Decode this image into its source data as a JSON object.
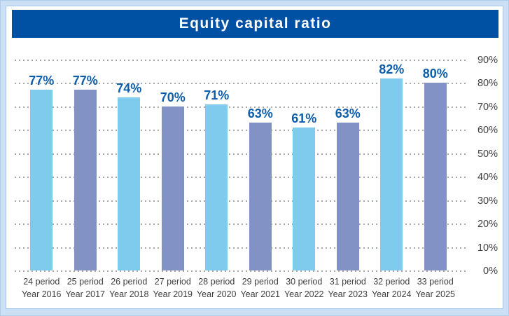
{
  "page": {
    "background_color": "#CBE0F4",
    "card_border_color": "#A6C9EA"
  },
  "banner": {
    "title": "Equity capital ratio",
    "background_color": "#0050A4",
    "text_color": "#FFFFFF"
  },
  "chart_data": {
    "type": "bar",
    "title": "Equity capital ratio",
    "unit": "%",
    "categories": [
      {
        "period": "24 period",
        "year": "Year 2016"
      },
      {
        "period": "25 period",
        "year": "Year 2017"
      },
      {
        "period": "26 period",
        "year": "Year 2018"
      },
      {
        "period": "27 period",
        "year": "Year 2019"
      },
      {
        "period": "28 period",
        "year": "Year 2020"
      },
      {
        "period": "29 period",
        "year": "Year 2021"
      },
      {
        "period": "30 period",
        "year": "Year 2022"
      },
      {
        "period": "31 period",
        "year": "Year 2023"
      },
      {
        "period": "32 period",
        "year": "Year 2024"
      },
      {
        "period": "33 period",
        "year": "Year 2025"
      }
    ],
    "values": [
      77,
      77,
      74,
      70,
      71,
      63,
      61,
      63,
      82,
      80
    ],
    "value_labels": [
      "77%",
      "77%",
      "74%",
      "70%",
      "71%",
      "63%",
      "61%",
      "63%",
      "82%",
      "80%"
    ],
    "ylim": [
      0,
      90
    ],
    "ytick_labels": [
      "90%",
      "80%",
      "70%",
      "60%",
      "50%",
      "40%",
      "30%",
      "20%",
      "10%",
      "0%"
    ],
    "grid": "horizontal-dotted",
    "legend": "none",
    "colors": {
      "odd_bars": "#7FCBEE",
      "even_bars": "#8392C5",
      "value_label_text": "#0C5EAC",
      "axis_text": "#3F3F3F",
      "gridline": "#A8A8A8"
    }
  }
}
